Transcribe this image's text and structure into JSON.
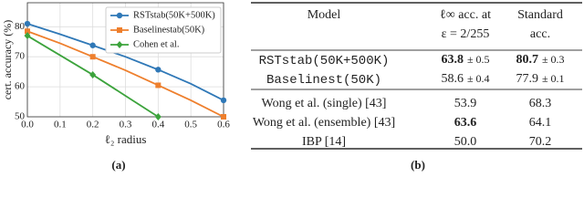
{
  "chart_data": {
    "type": "line",
    "xlabel": "ℓ₂ radius",
    "ylabel": "cert. accuracy (%)",
    "x": [
      0,
      0.1,
      0.2,
      0.3,
      0.4,
      0.5,
      0.6
    ],
    "series": [
      {
        "name": "RSTstab(50K+500K)",
        "color": "#2f78b7",
        "marker": "circle",
        "values": [
          81,
          77.5,
          73.8,
          70,
          65.7,
          61,
          55.5
        ]
      },
      {
        "name": "Baselinestab(50K)",
        "color": "#ee7f2d",
        "marker": "square",
        "values": [
          78.5,
          74.5,
          70,
          65.5,
          60.5,
          55.5,
          50
        ]
      },
      {
        "name": "Cohen et al.",
        "color": "#3ca33c",
        "marker": "diamond",
        "values": [
          77,
          70.5,
          64,
          57,
          50,
          null,
          null
        ]
      }
    ],
    "xlim": [
      0,
      0.6
    ],
    "ylim": [
      50,
      88
    ],
    "xticks": [
      {
        "value": 0,
        "label": "0.0"
      },
      0.1,
      0.2,
      0.3,
      0.4,
      0.5,
      0.6
    ],
    "yticks": [
      50,
      60,
      70,
      80
    ],
    "grid": true,
    "legend": "upper right"
  },
  "table": {
    "header": [
      [
        "Model"
      ],
      [
        "ℓ∞ acc. at",
        "ε = 2/255"
      ],
      [
        "Standard",
        "acc."
      ]
    ],
    "rows": [
      [
        [
          "RSTstab(50K+500K)"
        ],
        [
          "63.8",
          "± 0.5"
        ],
        [
          "80.7",
          "± 0.3"
        ]
      ],
      [
        [
          "Baselinest(50K)"
        ],
        [
          "58.6",
          "± 0.4"
        ],
        [
          "77.9",
          "± 0.1"
        ]
      ],
      [
        [
          "Wong et al. (single) [43]"
        ],
        [
          "53.9"
        ],
        [
          "68.3"
        ]
      ],
      [
        [
          "Wong et al. (ensemble) [43]"
        ],
        [
          "63.6"
        ],
        [
          "64.1"
        ]
      ],
      [
        [
          "IBP [14]"
        ],
        [
          "50.0"
        ],
        [
          "70.2"
        ]
      ]
    ]
  },
  "captions": [
    "(a)",
    "(b)"
  ]
}
